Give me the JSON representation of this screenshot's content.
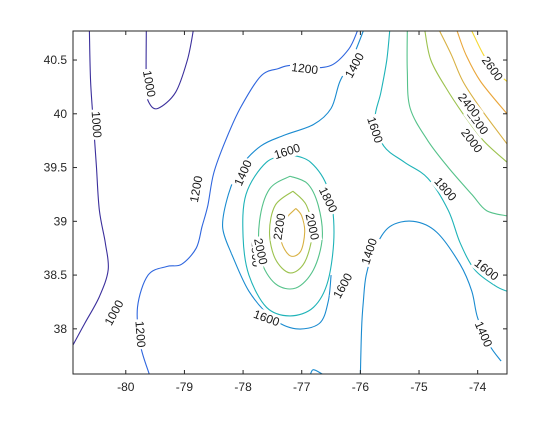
{
  "chart_data": {
    "type": "contour",
    "title": "",
    "xlabel": "",
    "ylabel": "",
    "xlim": [
      -80.9,
      -73.5
    ],
    "ylim": [
      37.58,
      40.77
    ],
    "x_ticks": [
      -80,
      -79,
      -78,
      -77,
      -76,
      -75,
      -74
    ],
    "y_ticks": [
      38,
      38.5,
      39,
      39.5,
      40,
      40.5
    ],
    "grid": false,
    "colormap": "parula",
    "levels": [
      {
        "value": 1000,
        "color": "#3b2f9c",
        "lines": [
          [
            [
              -80.9,
              37.85
            ],
            [
              -80.7,
              38.05
            ],
            [
              -80.45,
              38.3
            ],
            [
              -80.3,
              38.55
            ],
            [
              -80.35,
              38.8
            ],
            [
              -80.45,
              39.1
            ],
            [
              -80.5,
              39.5
            ],
            [
              -80.55,
              39.9
            ],
            [
              -80.6,
              40.3
            ],
            [
              -80.62,
              40.77
            ]
          ],
          [
            [
              -78.85,
              40.77
            ],
            [
              -78.95,
              40.5
            ],
            [
              -79.15,
              40.2
            ],
            [
              -79.45,
              40.05
            ],
            [
              -79.6,
              40.1
            ],
            [
              -79.65,
              40.25
            ],
            [
              -79.65,
              40.77
            ]
          ]
        ],
        "labels": [
          {
            "text": "1000",
            "x": -80.2,
            "y": 38.15
          },
          {
            "text": "1000",
            "x": -80.5,
            "y": 39.9
          },
          {
            "text": "1000",
            "x": -79.6,
            "y": 40.28
          }
        ]
      },
      {
        "value": 1200,
        "color": "#2f66de",
        "lines": [
          [
            [
              -79.6,
              37.58
            ],
            [
              -79.75,
              37.85
            ],
            [
              -79.8,
              38.2
            ],
            [
              -79.62,
              38.5
            ],
            [
              -79.3,
              38.58
            ],
            [
              -79.05,
              38.6
            ],
            [
              -78.8,
              38.75
            ],
            [
              -78.7,
              38.95
            ],
            [
              -78.6,
              39.15
            ],
            [
              -78.5,
              39.45
            ],
            [
              -78.3,
              39.75
            ],
            [
              -78.05,
              40.05
            ],
            [
              -77.7,
              40.35
            ],
            [
              -77.4,
              40.42
            ],
            [
              -77.2,
              40.45
            ],
            [
              -76.9,
              40.43
            ],
            [
              -76.5,
              40.45
            ],
            [
              -76.2,
              40.6
            ],
            [
              -76.05,
              40.77
            ]
          ]
        ],
        "labels": [
          {
            "text": "1200",
            "x": -79.75,
            "y": 37.95
          },
          {
            "text": "1200",
            "x": -78.8,
            "y": 39.3
          },
          {
            "text": "1200",
            "x": -76.95,
            "y": 40.42
          }
        ]
      },
      {
        "value": 1400,
        "color": "#1a8bd0",
        "lines": [
          [
            [
              -76.85,
              37.58
            ],
            [
              -76.8,
              37.62
            ],
            [
              -76.65,
              37.58
            ]
          ],
          [
            [
              -76.0,
              37.58
            ],
            [
              -75.98,
              38.0
            ],
            [
              -75.95,
              38.25
            ],
            [
              -75.9,
              38.5
            ],
            [
              -75.75,
              38.75
            ],
            [
              -75.5,
              38.95
            ],
            [
              -75.1,
              39.0
            ],
            [
              -74.7,
              38.9
            ],
            [
              -74.3,
              38.6
            ],
            [
              -74.1,
              38.35
            ],
            [
              -74.0,
              38.1
            ],
            [
              -73.8,
              37.85
            ],
            [
              -73.6,
              37.7
            ]
          ],
          [
            [
              -78.2,
              38.7
            ],
            [
              -78.35,
              38.95
            ],
            [
              -78.25,
              39.25
            ],
            [
              -78.05,
              39.5
            ],
            [
              -77.7,
              39.7
            ],
            [
              -77.3,
              39.8
            ],
            [
              -76.8,
              39.9
            ],
            [
              -76.5,
              40.05
            ],
            [
              -76.35,
              40.3
            ],
            [
              -76.15,
              40.5
            ],
            [
              -75.95,
              40.77
            ]
          ],
          [
            [
              -78.2,
              38.7
            ],
            [
              -77.9,
              38.35
            ],
            [
              -77.5,
              38.1
            ],
            [
              -77.1,
              38.0
            ],
            [
              -76.7,
              38.05
            ],
            [
              -76.55,
              38.25
            ],
            [
              -76.5,
              38.5
            ]
          ]
        ],
        "labels": [
          {
            "text": "1400",
            "x": -78.0,
            "y": 39.45
          },
          {
            "text": "1400",
            "x": -75.85,
            "y": 38.72
          },
          {
            "text": "1400",
            "x": -73.9,
            "y": 37.95
          },
          {
            "text": "1400",
            "x": -76.1,
            "y": 40.45
          }
        ]
      },
      {
        "value": 1600,
        "color": "#1eb3b8",
        "lines": [
          [
            [
              -77.2,
              39.62
            ],
            [
              -77.6,
              39.55
            ],
            [
              -77.95,
              39.25
            ],
            [
              -78.0,
              38.85
            ],
            [
              -77.9,
              38.5
            ],
            [
              -77.6,
              38.2
            ],
            [
              -77.2,
              38.12
            ],
            [
              -76.8,
              38.2
            ],
            [
              -76.55,
              38.45
            ],
            [
              -76.45,
              38.9
            ],
            [
              -76.55,
              39.3
            ],
            [
              -76.85,
              39.55
            ],
            [
              -77.2,
              39.62
            ]
          ],
          [
            [
              -75.5,
              40.77
            ],
            [
              -75.55,
              40.5
            ],
            [
              -75.65,
              40.2
            ],
            [
              -75.75,
              39.95
            ],
            [
              -75.6,
              39.7
            ],
            [
              -75.25,
              39.55
            ],
            [
              -74.85,
              39.4
            ],
            [
              -74.5,
              39.1
            ],
            [
              -74.3,
              38.8
            ],
            [
              -74.05,
              38.55
            ],
            [
              -73.7,
              38.4
            ],
            [
              -73.5,
              38.35
            ]
          ]
        ],
        "labels": [
          {
            "text": "1600",
            "x": -77.25,
            "y": 39.65
          },
          {
            "text": "1600",
            "x": -77.6,
            "y": 38.1
          },
          {
            "text": "1600",
            "x": -76.3,
            "y": 38.4
          },
          {
            "text": "1600",
            "x": -75.75,
            "y": 39.85
          },
          {
            "text": "1600",
            "x": -73.85,
            "y": 38.55
          }
        ]
      },
      {
        "value": 1800,
        "color": "#55c28a",
        "lines": [
          [
            [
              -77.2,
              39.42
            ],
            [
              -77.55,
              39.3
            ],
            [
              -77.72,
              39.0
            ],
            [
              -77.7,
              38.65
            ],
            [
              -77.45,
              38.42
            ],
            [
              -77.1,
              38.38
            ],
            [
              -76.8,
              38.55
            ],
            [
              -76.65,
              38.85
            ],
            [
              -76.72,
              39.15
            ],
            [
              -76.9,
              39.35
            ],
            [
              -77.2,
              39.42
            ]
          ],
          [
            [
              -75.2,
              40.77
            ],
            [
              -75.2,
              40.4
            ],
            [
              -75.15,
              40.05
            ],
            [
              -74.85,
              39.75
            ],
            [
              -74.5,
              39.5
            ],
            [
              -74.1,
              39.25
            ],
            [
              -73.85,
              39.1
            ],
            [
              -73.5,
              39.05
            ]
          ]
        ],
        "labels": [
          {
            "text": "1800",
            "x": -76.55,
            "y": 39.2
          },
          {
            "text": "1800",
            "x": -77.78,
            "y": 38.7
          },
          {
            "text": "1800",
            "x": -74.55,
            "y": 39.3
          }
        ]
      },
      {
        "value": 2000,
        "color": "#9cc24e",
        "lines": [
          [
            [
              -77.15,
              39.28
            ],
            [
              -77.45,
              39.15
            ],
            [
              -77.55,
              38.9
            ],
            [
              -77.45,
              38.65
            ],
            [
              -77.2,
              38.52
            ],
            [
              -76.95,
              38.62
            ],
            [
              -76.82,
              38.9
            ],
            [
              -76.92,
              39.15
            ],
            [
              -77.15,
              39.28
            ]
          ],
          [
            [
              -74.9,
              40.77
            ],
            [
              -74.8,
              40.5
            ],
            [
              -74.55,
              40.25
            ],
            [
              -74.25,
              40.0
            ],
            [
              -73.9,
              39.75
            ],
            [
              -73.5,
              39.55
            ]
          ]
        ],
        "labels": [
          {
            "text": "2000",
            "x": -76.82,
            "y": 38.95
          },
          {
            "text": "2000",
            "x": -77.7,
            "y": 38.72
          },
          {
            "text": "2000",
            "x": -74.1,
            "y": 39.75
          }
        ]
      },
      {
        "value": 2200,
        "color": "#d8b143",
        "lines": [
          [
            [
              -77.1,
              39.12
            ],
            [
              -77.3,
              39.0
            ],
            [
              -77.35,
              38.82
            ],
            [
              -77.2,
              38.68
            ],
            [
              -77.02,
              38.72
            ],
            [
              -76.95,
              38.9
            ],
            [
              -77.0,
              39.05
            ],
            [
              -77.1,
              39.12
            ]
          ],
          [
            [
              -74.65,
              40.77
            ],
            [
              -74.45,
              40.55
            ],
            [
              -74.25,
              40.3
            ],
            [
              -73.95,
              40.05
            ],
            [
              -73.5,
              39.72
            ]
          ]
        ],
        "labels": [
          {
            "text": "2200",
            "x": -77.38,
            "y": 38.95
          },
          {
            "text": "2200",
            "x": -74.0,
            "y": 39.92
          }
        ]
      },
      {
        "value": 2400,
        "color": "#eaa63a",
        "lines": [
          [
            [
              -74.35,
              40.77
            ],
            [
              -74.2,
              40.55
            ],
            [
              -73.95,
              40.3
            ],
            [
              -73.5,
              40.0
            ]
          ]
        ],
        "labels": [
          {
            "text": "2400",
            "x": -74.15,
            "y": 40.08
          }
        ]
      },
      {
        "value": 2600,
        "color": "#f5d82e",
        "lines": [
          [
            [
              -74.1,
              40.77
            ],
            [
              -73.9,
              40.55
            ],
            [
              -73.7,
              40.4
            ],
            [
              -73.5,
              40.3
            ]
          ]
        ],
        "labels": [
          {
            "text": "2600",
            "x": -73.75,
            "y": 40.42
          }
        ]
      }
    ]
  }
}
